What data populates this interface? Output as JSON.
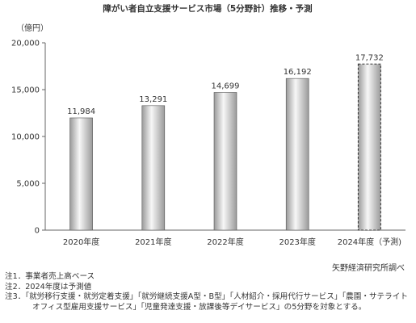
{
  "chart_data": {
    "type": "bar",
    "title": "障がい者自立支援サービス市場（5分野計）推移・予測",
    "unit_label": "（億円）",
    "categories": [
      "2020年度",
      "2021年度",
      "2022年度",
      "2023年度",
      "2024年度（予測)"
    ],
    "values": [
      11984,
      13291,
      14699,
      16192,
      17732
    ],
    "value_labels": [
      "11,984",
      "13,291",
      "14,699",
      "16,192",
      "17,732"
    ],
    "forecast_index": 4,
    "ylim": [
      0,
      20000
    ],
    "yticks": [
      0,
      5000,
      10000,
      15000,
      20000
    ],
    "ytick_labels": [
      "0",
      "5,000",
      "10,000",
      "15,000",
      "20,000"
    ],
    "grid": false,
    "legend": "none",
    "colors": {
      "bar_dark": "#9a9a9a",
      "bar_light": "#f7f7f7",
      "bar_edge": "#555555",
      "forecast_edge": "#333333"
    }
  },
  "source": "矢野経済研究所調べ",
  "notes": [
    "注1．事業者売上高ベース",
    "注2．2024年度は予測値",
    "注3．「就労移行支援・就労定着支援」「就労継続支援A型・B型」「人材紹介・採用代行サービス」「農園・サテライト",
    "オフィス型雇用支援サービス」「児童発達支援・放課後等デイサービス」の5分野を対象とする。"
  ]
}
